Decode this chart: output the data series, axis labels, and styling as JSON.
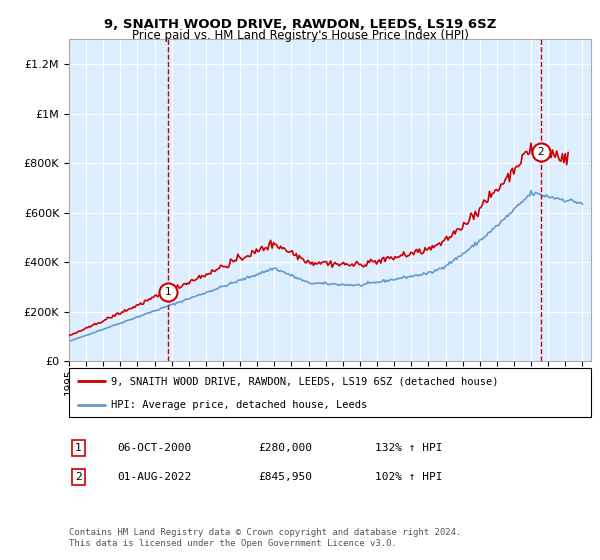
{
  "title1": "9, SNAITH WOOD DRIVE, RAWDON, LEEDS, LS19 6SZ",
  "title2": "Price paid vs. HM Land Registry's House Price Index (HPI)",
  "legend_line1": "9, SNAITH WOOD DRIVE, RAWDON, LEEDS, LS19 6SZ (detached house)",
  "legend_line2": "HPI: Average price, detached house, Leeds",
  "sale1_label": "1",
  "sale1_date": "06-OCT-2000",
  "sale1_price": "£280,000",
  "sale1_hpi": "132% ↑ HPI",
  "sale1_year": 2000.77,
  "sale1_value": 280000,
  "sale2_label": "2",
  "sale2_date": "01-AUG-2022",
  "sale2_price": "£845,950",
  "sale2_hpi": "102% ↑ HPI",
  "sale2_year": 2022.58,
  "sale2_value": 845950,
  "ylim_max": 1300000,
  "ylim_min": 0,
  "xlim_min": 1995,
  "xlim_max": 2025.5,
  "red_color": "#cc0000",
  "blue_color": "#6699cc",
  "bg_color": "#ddeeff",
  "grid_color": "#ffffff",
  "footer_text": "Contains HM Land Registry data © Crown copyright and database right 2024.\nThis data is licensed under the Open Government Licence v3.0."
}
